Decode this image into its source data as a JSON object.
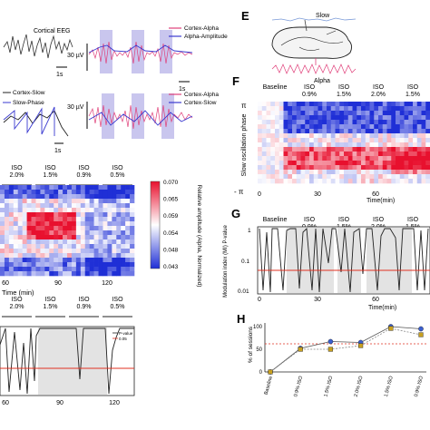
{
  "panels": {
    "E": "E",
    "F": "F",
    "G": "G",
    "H": "H"
  },
  "top_left": {
    "eeg_label": "Cortical EEG",
    "scale_30uv_1": "30 µV",
    "scale_1s_1": "1s",
    "legend_1": [
      "Cortex-Alpha",
      "Alpha-Amplitude"
    ],
    "slow_labels": [
      "Cortex-Slow",
      "Slow-Phase"
    ],
    "scale_30uv_2": "30 µV",
    "scale_1s_2": "1s",
    "scale_1s_3": "1s",
    "legend_2": [
      "Cortex-Alpha",
      "Cortex-Slow"
    ]
  },
  "panel_e": {
    "slow_label": "Slow",
    "alpha_label": "Alpha"
  },
  "left_heatmap": {
    "iso_header": [
      {
        "iso": "ISO",
        "pct": "2.0%"
      },
      {
        "iso": "ISO",
        "pct": "1.5%"
      },
      {
        "iso": "ISO",
        "pct": "0.9%"
      },
      {
        "iso": "ISO",
        "pct": "0.5%"
      }
    ],
    "x_ticks": [
      "60",
      "90",
      "120"
    ],
    "x_label": "Time (min)",
    "colorbar_ticks": [
      "0.070",
      "0.065",
      "0.059",
      "0.054",
      "0.048",
      "0.043"
    ],
    "colorbar_label": "Relative amplitude (Alpha, Normalized)",
    "colors": {
      "high": "#e8102e",
      "mid": "#ffffff",
      "low": "#1f2fd6"
    }
  },
  "left_bottom": {
    "iso_header": [
      {
        "iso": "ISO",
        "pct": "2.0%"
      },
      {
        "iso": "ISO",
        "pct": "1.5%"
      },
      {
        "iso": "ISO",
        "pct": "0.9%"
      },
      {
        "iso": "ISO",
        "pct": "0.5%"
      }
    ],
    "x_ticks": [
      "60",
      "90",
      "120"
    ],
    "legend": [
      "P-value",
      "0.05"
    ]
  },
  "panel_f": {
    "header": [
      {
        "iso": "Baseline",
        "pct": ""
      },
      {
        "iso": "ISO",
        "pct": "0.9%"
      },
      {
        "iso": "ISO",
        "pct": "1.5%"
      },
      {
        "iso": "ISO",
        "pct": "2.0%"
      },
      {
        "iso": "ISO",
        "pct": "1.5%"
      }
    ],
    "y_label": "Slow oscillation phase",
    "y_top": "π",
    "y_bottom": "- π",
    "x_ticks": [
      "0",
      "30",
      "60"
    ],
    "x_label": "Time(min)"
  },
  "panel_g": {
    "header": [
      {
        "iso": "Baseline",
        "pct": ""
      },
      {
        "iso": "ISO",
        "pct": "0.9%"
      },
      {
        "iso": "ISO",
        "pct": "1.5%"
      },
      {
        "iso": "ISO",
        "pct": "2.0%"
      },
      {
        "iso": "ISO",
        "pct": "1.5%"
      }
    ],
    "y_label": "Modulation index (MI) P-value",
    "y_ticks": [
      "1",
      "0.1",
      "0.01"
    ],
    "x_ticks": [
      "0",
      "30",
      "60"
    ],
    "x_label": "Time(min)"
  },
  "chart_data": {
    "type": "line",
    "categories": [
      "Baseline",
      "0.9% ISO",
      "1.5% ISO",
      "2.0% ISO",
      "1.5% ISO",
      "0.9% ISO"
    ],
    "series": [
      {
        "values": [
          0,
          52,
          67,
          65,
          100,
          95
        ],
        "color": "#3b5fcf"
      },
      {
        "values": [
          0,
          50,
          50,
          58,
          96,
          82
        ],
        "color": "#c8a020"
      }
    ],
    "ylabel": "% of sessions",
    "y_ticks": [
      "100",
      "50",
      "0"
    ],
    "ylim": [
      0,
      100
    ],
    "ref_line": 62,
    "grid": false
  }
}
